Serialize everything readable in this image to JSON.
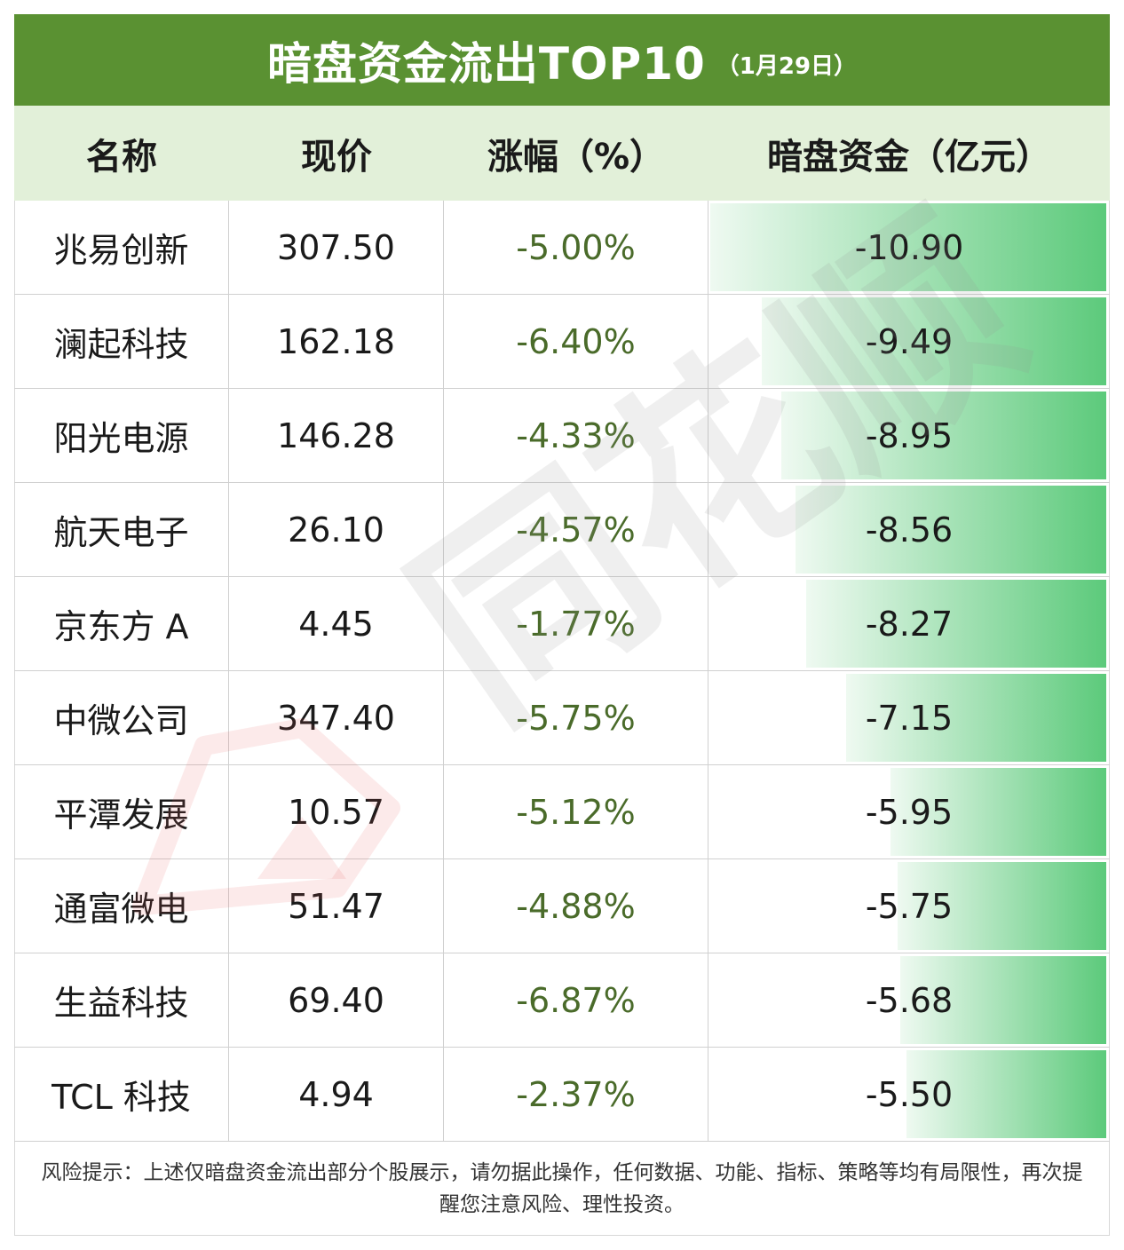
{
  "title": {
    "main": "暗盘资金流出TOP10",
    "sub": "（1月29日）"
  },
  "headers": [
    "名称",
    "现价",
    "涨幅（%）",
    "暗盘资金（亿元）"
  ],
  "chart_data": {
    "type": "table",
    "title": "暗盘资金流出TOP10",
    "columns": [
      "名称",
      "现价",
      "涨幅（%）",
      "暗盘资金（亿元）"
    ],
    "rows": [
      {
        "name": "兆易创新",
        "price": "307.50",
        "change": "-5.00%",
        "flow": "-10.90",
        "flow_value": -10.9
      },
      {
        "name": "澜起科技",
        "price": "162.18",
        "change": "-6.40%",
        "flow": "-9.49",
        "flow_value": -9.49
      },
      {
        "name": "阳光电源",
        "price": "146.28",
        "change": "-4.33%",
        "flow": "-8.95",
        "flow_value": -8.95
      },
      {
        "name": "航天电子",
        "price": "26.10",
        "change": "-4.57%",
        "flow": "-8.56",
        "flow_value": -8.56
      },
      {
        "name": "京东方 A",
        "price": "4.45",
        "change": "-1.77%",
        "flow": "-8.27",
        "flow_value": -8.27
      },
      {
        "name": "中微公司",
        "price": "347.40",
        "change": "-5.75%",
        "flow": "-7.15",
        "flow_value": -7.15
      },
      {
        "name": "平潭发展",
        "price": "10.57",
        "change": "-5.12%",
        "flow": "-5.95",
        "flow_value": -5.95
      },
      {
        "name": "通富微电",
        "price": "51.47",
        "change": "-4.88%",
        "flow": "-5.75",
        "flow_value": -5.75
      },
      {
        "name": "生益科技",
        "price": "69.40",
        "change": "-6.87%",
        "flow": "-5.68",
        "flow_value": -5.68
      },
      {
        "name": "TCL 科技",
        "price": "4.94",
        "change": "-2.37%",
        "flow": "-5.50",
        "flow_value": -5.5
      }
    ]
  },
  "footer": "风险提示：上述仅暗盘资金流出部分个股展示，请勿据此操作，任何数据、功能、指标、策略等均有局限性，再次提醒您注意风险、理性投资。",
  "watermark": "同花顺",
  "colors": {
    "title_bg": "#5a9132",
    "header_bg": "#e2f0d9",
    "bar": "#5cca7b",
    "change_text": "#4a6b2a"
  }
}
